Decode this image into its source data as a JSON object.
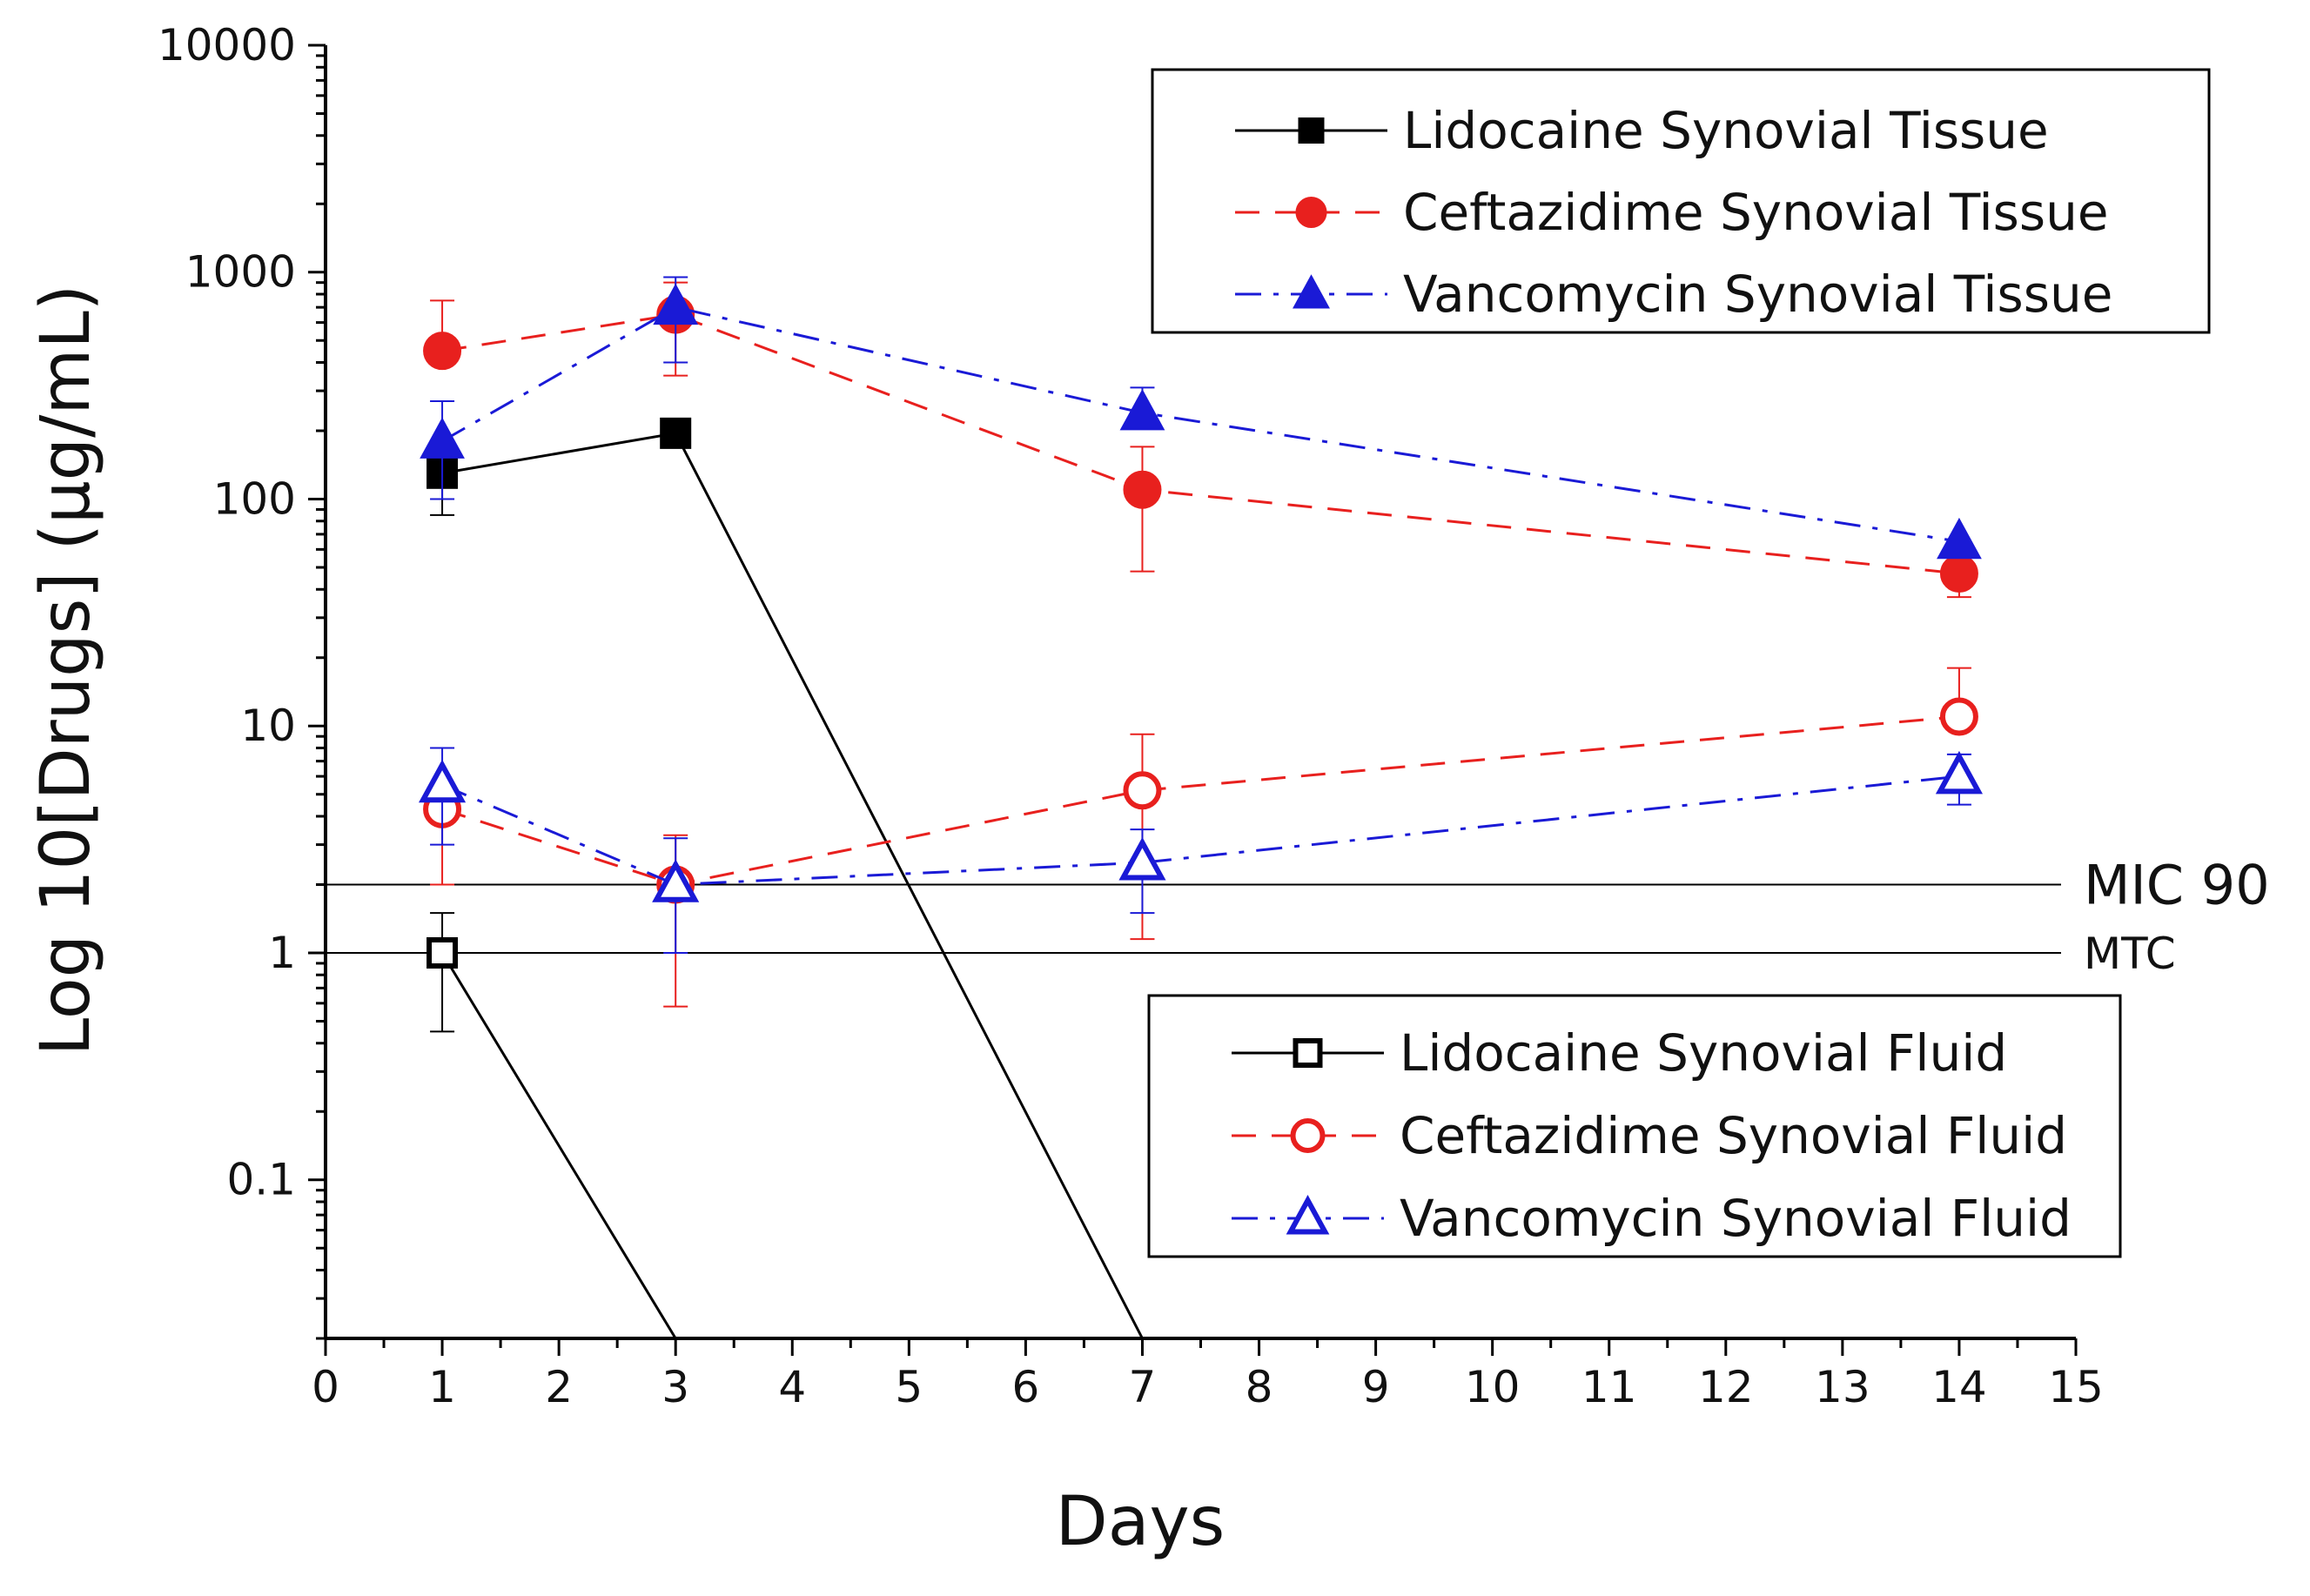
{
  "chart_data": {
    "type": "line",
    "title": "",
    "xlabel": "Days",
    "ylabel": "Log 10[Drugs] (μg/mL)",
    "yscale": "log",
    "xlim": [
      0,
      15
    ],
    "ylim": [
      0.02,
      10000
    ],
    "x_ticks": [
      "0",
      "1",
      "2",
      "3",
      "4",
      "5",
      "6",
      "7",
      "8",
      "9",
      "10",
      "11",
      "12",
      "13",
      "14",
      "15"
    ],
    "y_ticks": [
      {
        "value": 0.1,
        "label": "0.1"
      },
      {
        "value": 1,
        "label": "1"
      },
      {
        "value": 10,
        "label": "10"
      },
      {
        "value": 100,
        "label": "100"
      },
      {
        "value": 1000,
        "label": "1000"
      },
      {
        "value": 10000,
        "label": "10000"
      }
    ],
    "reference_lines": [
      {
        "label": "MIC 90",
        "value": 2,
        "size": "large"
      },
      {
        "label": "MTC",
        "value": 1,
        "size": "small"
      }
    ],
    "series": [
      {
        "name": "Lidocaine Synovial Tissue",
        "color": "#000000",
        "dash": "solid",
        "marker": "square",
        "filled": true,
        "legend": "top",
        "x": [
          1,
          3,
          7
        ],
        "y": [
          130,
          195,
          0.02
        ],
        "err_lo": [
          45,
          0,
          0
        ],
        "err_hi": [
          40,
          0,
          0
        ],
        "show_marker": [
          true,
          true,
          false
        ]
      },
      {
        "name": "Ceftazidime Synovial Tissue",
        "color": "#e8201e",
        "dash": "dashed",
        "marker": "circle",
        "filled": true,
        "legend": "top",
        "x": [
          1,
          3,
          7,
          14
        ],
        "y": [
          450,
          650,
          110,
          47
        ],
        "err_lo": [
          0,
          300,
          62,
          10
        ],
        "err_hi": [
          300,
          250,
          60,
          10
        ],
        "show_marker": [
          true,
          true,
          true,
          true
        ]
      },
      {
        "name": "Vancomycin Synovial Tissue",
        "color": "#1a1ad6",
        "dash": "dashdot",
        "marker": "triangle",
        "filled": true,
        "legend": "top",
        "x": [
          1,
          3,
          7,
          14
        ],
        "y": [
          180,
          700,
          240,
          65
        ],
        "err_lo": [
          80,
          300,
          0,
          0
        ],
        "err_hi": [
          90,
          250,
          70,
          0
        ],
        "show_marker": [
          true,
          true,
          true,
          true
        ]
      },
      {
        "name": "Lidocaine Synovial Fluid",
        "color": "#000000",
        "dash": "solid",
        "marker": "square",
        "filled": false,
        "legend": "bottom",
        "x": [
          1,
          3
        ],
        "y": [
          1.0,
          0.02
        ],
        "err_lo": [
          0.55,
          0
        ],
        "err_hi": [
          0.5,
          0
        ],
        "show_marker": [
          true,
          false
        ]
      },
      {
        "name": "Ceftazidime Synovial Fluid",
        "color": "#e8201e",
        "dash": "dashed",
        "marker": "circle",
        "filled": false,
        "legend": "bottom",
        "x": [
          1,
          3,
          7,
          14
        ],
        "y": [
          4.3,
          2.0,
          5.2,
          11
        ],
        "err_lo": [
          2.3,
          1.42,
          4.05,
          0
        ],
        "err_hi": [
          0,
          1.3,
          4,
          7
        ],
        "show_marker": [
          true,
          true,
          true,
          true
        ]
      },
      {
        "name": "Vancomycin Synovial Fluid",
        "color": "#1a1ad6",
        "dash": "dashdot",
        "marker": "triangle",
        "filled": false,
        "legend": "bottom",
        "x": [
          1,
          3,
          7,
          14
        ],
        "y": [
          5.5,
          2.0,
          2.5,
          6.0
        ],
        "err_lo": [
          2.5,
          1.0,
          1.0,
          1.5
        ],
        "err_hi": [
          2.5,
          1.2,
          1.0,
          1.5
        ],
        "show_marker": [
          true,
          true,
          true,
          true
        ]
      }
    ]
  }
}
